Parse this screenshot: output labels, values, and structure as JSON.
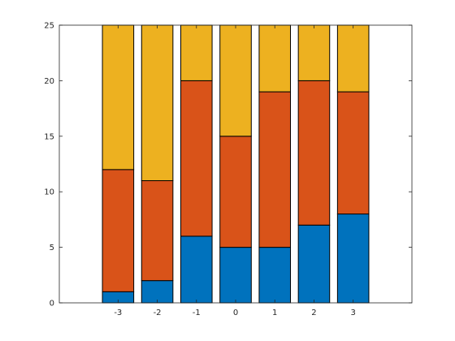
{
  "chart_data": {
    "type": "bar",
    "stacked": true,
    "categories": [
      "-3",
      "-2",
      "-1",
      "0",
      "1",
      "2",
      "3"
    ],
    "x": [
      -3,
      -2,
      -1,
      0,
      1,
      2,
      3
    ],
    "series": [
      {
        "values": [
          1,
          2,
          6,
          5,
          5,
          7,
          8
        ],
        "color": "#0072BD"
      },
      {
        "values": [
          11,
          9,
          14,
          10,
          14,
          13,
          11
        ],
        "color": "#D95319"
      },
      {
        "values": [
          13,
          14,
          5,
          10,
          6,
          5,
          6
        ],
        "color": "#EDB120"
      }
    ],
    "xlim": [
      -4.5,
      4.5
    ],
    "ylim": [
      0,
      25
    ],
    "xticks": [
      "-3",
      "-2",
      "-1",
      "0",
      "1",
      "2",
      "3"
    ],
    "yticks": [
      "0",
      "5",
      "10",
      "15",
      "20",
      "25"
    ],
    "title": "",
    "xlabel": "",
    "ylabel": "",
    "grid": false,
    "legend": "none"
  }
}
